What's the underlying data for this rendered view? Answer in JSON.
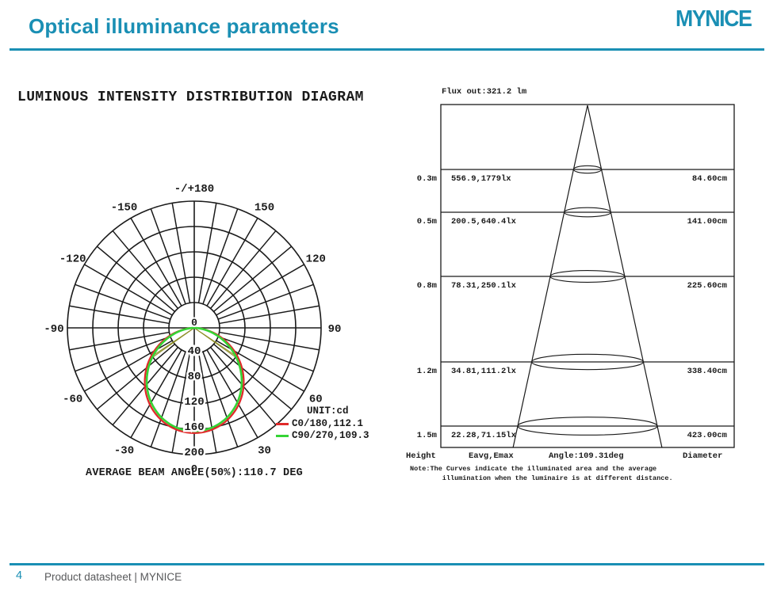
{
  "header": {
    "title": "Optical illuminance parameters",
    "logo": "MYNICE",
    "accent_color": "#1a8fb4"
  },
  "footer": {
    "page_number": "4",
    "text": "Product datasheet | MYNICE"
  },
  "polar": {
    "title": "LUMINOUS INTENSITY DISTRIBUTION DIAGRAM",
    "caption": "AVERAGE BEAM ANGLE(50%):110.7 DEG",
    "center_label": "0",
    "rings": [
      40,
      80,
      120,
      160,
      200
    ],
    "ring_labels": [
      "40",
      "80",
      "120",
      "160",
      "200"
    ],
    "spoke_step_deg": 10,
    "angle_labels": [
      {
        "deg": 180,
        "label": "-/+180"
      },
      {
        "deg": -150,
        "label": "-150"
      },
      {
        "deg": 150,
        "label": "150"
      },
      {
        "deg": -120,
        "label": "-120"
      },
      {
        "deg": 120,
        "label": "120"
      },
      {
        "deg": -90,
        "label": "-90"
      },
      {
        "deg": 90,
        "label": "90"
      },
      {
        "deg": -60,
        "label": "-60"
      },
      {
        "deg": 60,
        "label": "60"
      },
      {
        "deg": -30,
        "label": "-30"
      },
      {
        "deg": 30,
        "label": "30"
      },
      {
        "deg": 0,
        "label": "0"
      }
    ],
    "legend": {
      "unit_label": "UNIT:cd",
      "entries": [
        {
          "label": "C0/180,112.1",
          "color": "#e02a2a"
        },
        {
          "label": "C90/270,109.3",
          "color": "#35d435"
        }
      ]
    },
    "curves": [
      {
        "name": "C0/180",
        "beam_angle_deg": 112.1,
        "max_cd": 166,
        "color": "#e02a2a",
        "width": 2.3
      },
      {
        "name": "C90/270",
        "beam_angle_deg": 109.3,
        "max_cd": 163,
        "color": "#35d435",
        "width": 2.6
      }
    ],
    "beam_line_color": "#8f8f2a"
  },
  "cone": {
    "flux_label": "Flux out:321.2 lm",
    "columns": [
      "Height",
      "Eavg,Emax",
      "Angle:109.31deg",
      "Diameter"
    ],
    "rows": [
      {
        "height_m": 0.3,
        "height": "0.3m",
        "eavg_emax": "556.9,1779lx",
        "diameter": "84.60cm"
      },
      {
        "height_m": 0.5,
        "height": "0.5m",
        "eavg_emax": "200.5,640.4lx",
        "diameter": "141.00cm"
      },
      {
        "height_m": 0.8,
        "height": "0.8m",
        "eavg_emax": "78.31,250.1lx",
        "diameter": "225.60cm"
      },
      {
        "height_m": 1.2,
        "height": "1.2m",
        "eavg_emax": "34.81,111.2lx",
        "diameter": "338.40cm"
      },
      {
        "height_m": 1.5,
        "height": "1.5m",
        "eavg_emax": "22.28,71.15lx",
        "diameter": "423.00cm"
      }
    ],
    "note": "Note:The Curves indicate the illuminated area and the average\n        illumination when the luminaire is at different distance."
  },
  "chart_data": [
    {
      "type": "polar_intensity_distribution",
      "title": "LUMINOUS INTENSITY DISTRIBUTION DIAGRAM",
      "unit": "cd",
      "radial_ticks": [
        0,
        40,
        80,
        120,
        160,
        200
      ],
      "angle_ticks_deg": [
        -180,
        -150,
        -120,
        -90,
        -60,
        -30,
        0,
        30,
        60,
        90,
        120,
        150,
        180
      ],
      "series": [
        {
          "name": "C0/180",
          "peak_cd": 166,
          "beam_angle_50pct_deg": 112.1,
          "color": "red"
        },
        {
          "name": "C90/270",
          "peak_cd": 163,
          "beam_angle_50pct_deg": 109.3,
          "color": "green"
        }
      ],
      "average_beam_angle_50pct_deg": 110.7
    },
    {
      "type": "illuminance_cone",
      "flux_out_lm": 321.2,
      "beam_angle_deg": 109.31,
      "columns": [
        "Height",
        "Eavg,Emax",
        "Diameter"
      ],
      "rows": [
        [
          "0.3m",
          "556.9,1779lx",
          "84.60cm"
        ],
        [
          "0.5m",
          "200.5,640.4lx",
          "141.00cm"
        ],
        [
          "0.8m",
          "78.31,250.1lx",
          "225.60cm"
        ],
        [
          "1.2m",
          "34.81,111.2lx",
          "338.40cm"
        ],
        [
          "1.5m",
          "22.28,71.15lx",
          "423.00cm"
        ]
      ]
    }
  ]
}
